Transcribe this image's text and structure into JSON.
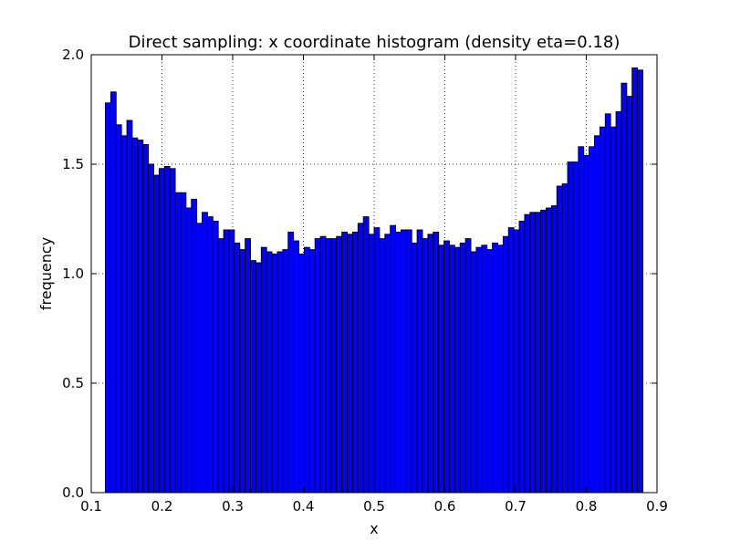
{
  "chart_data": {
    "type": "bar",
    "title": "Direct sampling: x coordinate histogram (density eta=0.18)",
    "xlabel": "x",
    "ylabel": "frequency",
    "xlim": [
      0.1,
      0.9
    ],
    "ylim": [
      0.0,
      2.0
    ],
    "x_ticks": [
      "0.1",
      "0.2",
      "0.3",
      "0.4",
      "0.5",
      "0.6",
      "0.7",
      "0.8",
      "0.9"
    ],
    "y_ticks": [
      "0.0",
      "0.5",
      "1.0",
      "1.5",
      "2.0"
    ],
    "grid": true,
    "bar_color": "#0000ff",
    "bin_start": 0.12,
    "bin_end": 0.88,
    "values": [
      1.78,
      1.83,
      1.68,
      1.63,
      1.7,
      1.62,
      1.61,
      1.59,
      1.5,
      1.45,
      1.48,
      1.49,
      1.48,
      1.37,
      1.37,
      1.3,
      1.34,
      1.23,
      1.28,
      1.26,
      1.24,
      1.16,
      1.2,
      1.2,
      1.14,
      1.11,
      1.16,
      1.06,
      1.05,
      1.12,
      1.1,
      1.09,
      1.1,
      1.11,
      1.19,
      1.15,
      1.09,
      1.12,
      1.11,
      1.16,
      1.17,
      1.16,
      1.16,
      1.17,
      1.19,
      1.18,
      1.19,
      1.23,
      1.26,
      1.18,
      1.21,
      1.16,
      1.18,
      1.22,
      1.19,
      1.2,
      1.2,
      1.14,
      1.2,
      1.16,
      1.18,
      1.19,
      1.13,
      1.15,
      1.13,
      1.12,
      1.14,
      1.16,
      1.1,
      1.12,
      1.13,
      1.11,
      1.14,
      1.13,
      1.17,
      1.21,
      1.2,
      1.24,
      1.27,
      1.28,
      1.28,
      1.29,
      1.3,
      1.31,
      1.4,
      1.41,
      1.51,
      1.51,
      1.58,
      1.54,
      1.58,
      1.63,
      1.67,
      1.73,
      1.67,
      1.74,
      1.87,
      1.81,
      1.94,
      1.93
    ]
  }
}
